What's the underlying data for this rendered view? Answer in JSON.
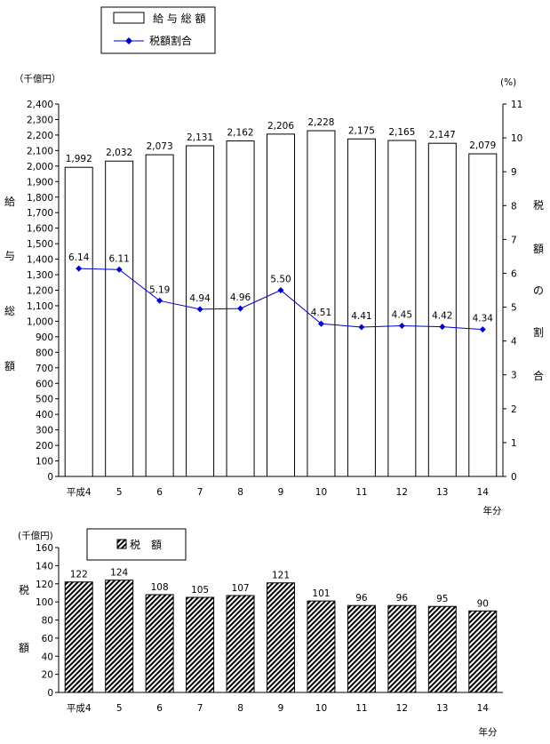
{
  "chart_data": [
    {
      "type": "bar+line",
      "categories": [
        "平成4",
        "5",
        "6",
        "7",
        "8",
        "9",
        "10",
        "11",
        "12",
        "13",
        "14"
      ],
      "series": [
        {
          "name": "給 与 総 額",
          "type": "bar",
          "axis": "left",
          "values": [
            1992,
            2032,
            2073,
            2131,
            2162,
            2206,
            2228,
            2175,
            2165,
            2147,
            2079
          ],
          "labels": [
            "1,992",
            "2,032",
            "2,073",
            "2,131",
            "2,162",
            "2,206",
            "2,228",
            "2,175",
            "2,165",
            "2,147",
            "2,079"
          ],
          "color": "#ffffff"
        },
        {
          "name": "税額割合",
          "type": "line",
          "axis": "right",
          "values": [
            6.14,
            6.11,
            5.19,
            4.94,
            4.96,
            5.5,
            4.51,
            4.41,
            4.45,
            4.42,
            4.34
          ],
          "labels": [
            "6.14",
            "6.11",
            "5.19",
            "4.94",
            "4.96",
            "5.50",
            "4.51",
            "4.41",
            "4.45",
            "4.42",
            "4.34"
          ],
          "color": "#0000cc"
        }
      ],
      "left_axis": {
        "unit": "（千億円）",
        "label_chars": [
          "給",
          "与",
          "総",
          "額"
        ],
        "range": [
          0,
          2400
        ],
        "ticks": [
          "0",
          "100",
          "200",
          "300",
          "400",
          "500",
          "600",
          "700",
          "800",
          "900",
          "1,000",
          "1,100",
          "1,200",
          "1,300",
          "1,400",
          "1,500",
          "1,600",
          "1,700",
          "1,800",
          "1,900",
          "2,000",
          "2,100",
          "2,200",
          "2,300",
          "2,400"
        ]
      },
      "right_axis": {
        "unit": "(%)",
        "label_chars": [
          "税",
          "額",
          "の",
          "割",
          "合"
        ],
        "range": [
          0,
          11
        ],
        "ticks": [
          "0",
          "1",
          "2",
          "3",
          "4",
          "5",
          "6",
          "7",
          "8",
          "9",
          "10",
          "11"
        ]
      },
      "xlabel": "年分",
      "legend_position": "top-left",
      "grid": false
    },
    {
      "type": "bar",
      "categories": [
        "平成4",
        "5",
        "6",
        "7",
        "8",
        "9",
        "10",
        "11",
        "12",
        "13",
        "14"
      ],
      "series": [
        {
          "name": "税　額",
          "values": [
            122,
            124,
            108,
            105,
            107,
            121,
            101,
            96,
            96,
            95,
            90
          ],
          "labels": [
            "122",
            "124",
            "108",
            "105",
            "107",
            "121",
            "101",
            "96",
            "96",
            "95",
            "90"
          ],
          "pattern": "diagonal-hatch"
        }
      ],
      "left_axis": {
        "unit": "(千億円)",
        "label_chars": [
          "税",
          "額"
        ],
        "range": [
          0,
          160
        ],
        "ticks": [
          "0",
          "20",
          "40",
          "60",
          "80",
          "100",
          "120",
          "140",
          "160"
        ]
      },
      "xlabel": "年分",
      "legend_position": "top-left",
      "grid": false
    }
  ]
}
